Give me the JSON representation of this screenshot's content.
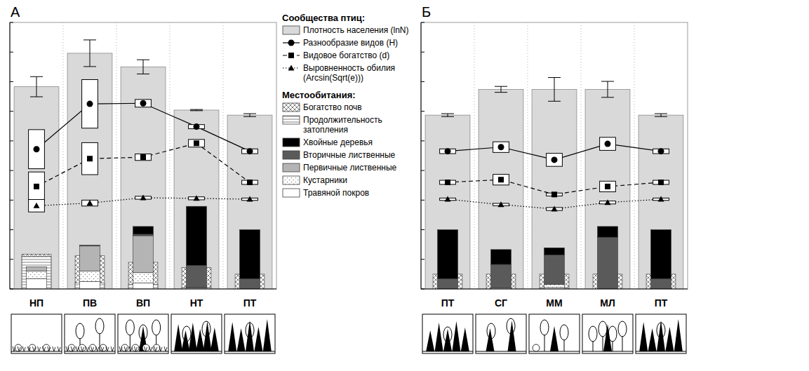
{
  "legend_headings": [
    "Сообщества птиц:",
    "Местообитания:"
  ],
  "chart_data": [
    {
      "type": "bar",
      "title": "А",
      "categories": [
        "НП",
        "ПВ",
        "ВП",
        "НТ",
        "ПТ"
      ],
      "ylim": [
        0,
        9
      ],
      "yticks": [
        0,
        1,
        2,
        3,
        4,
        5,
        6,
        7,
        8,
        9
      ],
      "grid": true,
      "tick_labels": "x",
      "legend": "right",
      "series": [
        {
          "name": "Плотность населения (lnN)",
          "type": "bar",
          "color": "#d9d9d9",
          "values": [
            6.83,
            7.96,
            7.5,
            6.04,
            5.87
          ],
          "errors": [
            0.34,
            0.45,
            0.24,
            0.02,
            0.05
          ]
        },
        {
          "name": "Разнообразие видов (H)",
          "type": "line",
          "color": "#000000",
          "marker": "circle",
          "line_style": "solid",
          "values": [
            4.72,
            6.25,
            6.27,
            5.48,
            4.65
          ],
          "errors": [
            0.66,
            0.82,
            0.13,
            0.07,
            0.08
          ]
        },
        {
          "name": "Видовое богатство (d)",
          "type": "line",
          "color": "#000000",
          "marker": "square",
          "line_style": "dashed",
          "values": [
            3.46,
            4.4,
            4.45,
            4.92,
            3.6
          ],
          "errors": [
            0.49,
            0.54,
            0.11,
            0.13,
            0.07
          ]
        },
        {
          "name": "Выровненность обилия (Arcsin(Sqrt(e)))",
          "type": "line",
          "color": "#000000",
          "marker": "triangle",
          "line_style": "dotted",
          "values": [
            2.81,
            2.9,
            3.08,
            3.06,
            3.03
          ],
          "errors": [
            0.21,
            0.1,
            0.05,
            0.05,
            0.04
          ]
        },
        {
          "name": "Богатство почв",
          "type": "habitat_bar",
          "color": "#707070",
          "values": [
            1.17,
            1.12,
            0.9,
            0.72,
            0.5
          ]
        },
        {
          "name": "Продолжительность затопления",
          "type": "habitat_bar",
          "color": "#707070",
          "values": [
            1.1,
            0.2,
            0.15,
            0.05,
            0
          ]
        },
        {
          "name": "Хвойные деревья",
          "type": "stacked_bar",
          "color": "#000000",
          "values": [
            0,
            0,
            0.26,
            1.99,
            1.65
          ]
        },
        {
          "name": "Вторичные лиственные",
          "type": "stacked_bar",
          "color": "#5a5a5a",
          "values": [
            0,
            0.03,
            0.05,
            0.75,
            0.35
          ]
        },
        {
          "name": "Первичные лиственные",
          "type": "stacked_bar",
          "color": "#b4b4b4",
          "values": [
            0.15,
            0.85,
            1.25,
            0,
            0
          ]
        },
        {
          "name": "Кустарники",
          "type": "stacked_bar",
          "color": "#909090",
          "values": [
            0.25,
            0.35,
            0.35,
            0.02,
            0
          ]
        },
        {
          "name": "Травяной покров",
          "type": "stacked_bar",
          "color": "#ffffff",
          "values": [
            0.35,
            0.25,
            0.2,
            0.03,
            0
          ]
        }
      ]
    },
    {
      "type": "bar",
      "title": "Б",
      "categories": [
        "ПТ",
        "СГ",
        "ММ",
        "МЛ",
        "ПТ"
      ],
      "ylim": [
        0,
        9
      ],
      "yticks": [
        0,
        1,
        2,
        3,
        4,
        5,
        6,
        7,
        8,
        9
      ],
      "grid": true,
      "tick_labels": "x",
      "series": [
        {
          "type": "bar",
          "color": "#d9d9d9",
          "values": [
            5.87,
            6.74,
            6.74,
            6.74,
            5.87
          ],
          "errors": [
            0.05,
            0.1,
            0.4,
            0.27,
            0.05
          ]
        },
        {
          "type": "line",
          "color": "#000000",
          "marker": "circle",
          "line_style": "solid",
          "values": [
            4.65,
            4.79,
            4.36,
            4.9,
            4.65
          ],
          "errors": [
            0.08,
            0.18,
            0.22,
            0.22,
            0.08
          ]
        },
        {
          "type": "line",
          "color": "#000000",
          "marker": "square",
          "line_style": "dashed",
          "values": [
            3.6,
            3.69,
            3.19,
            3.46,
            3.6
          ],
          "errors": [
            0.07,
            0.18,
            0.05,
            0.18,
            0.07
          ]
        },
        {
          "type": "line",
          "color": "#000000",
          "marker": "triangle",
          "line_style": "dotted",
          "values": [
            3.03,
            2.85,
            2.7,
            2.92,
            3.03
          ],
          "errors": [
            0.04,
            0.04,
            0.05,
            0.05,
            0.04
          ]
        },
        {
          "type": "habitat_bar",
          "color": "#707070",
          "values": [
            0.5,
            0.5,
            0.5,
            0.5,
            0.5
          ]
        },
        {
          "type": "habitat_bar",
          "color": "#707070",
          "values": [
            0,
            0,
            0.03,
            0,
            0
          ]
        },
        {
          "type": "stacked_bar",
          "color": "#000000",
          "values": [
            1.65,
            0.5,
            0.24,
            0.36,
            1.65
          ]
        },
        {
          "type": "stacked_bar",
          "color": "#5a5a5a",
          "values": [
            0.35,
            0.8,
            1.0,
            1.75,
            0.35
          ]
        },
        {
          "type": "stacked_bar",
          "color": "#b4b4b4",
          "values": [
            0,
            0,
            0,
            0,
            0
          ]
        },
        {
          "type": "stacked_bar",
          "color": "#909090",
          "values": [
            0,
            0,
            0.1,
            0,
            0
          ]
        },
        {
          "type": "stacked_bar",
          "color": "#ffffff",
          "values": [
            0,
            0.03,
            0.05,
            0,
            0
          ]
        }
      ]
    }
  ]
}
